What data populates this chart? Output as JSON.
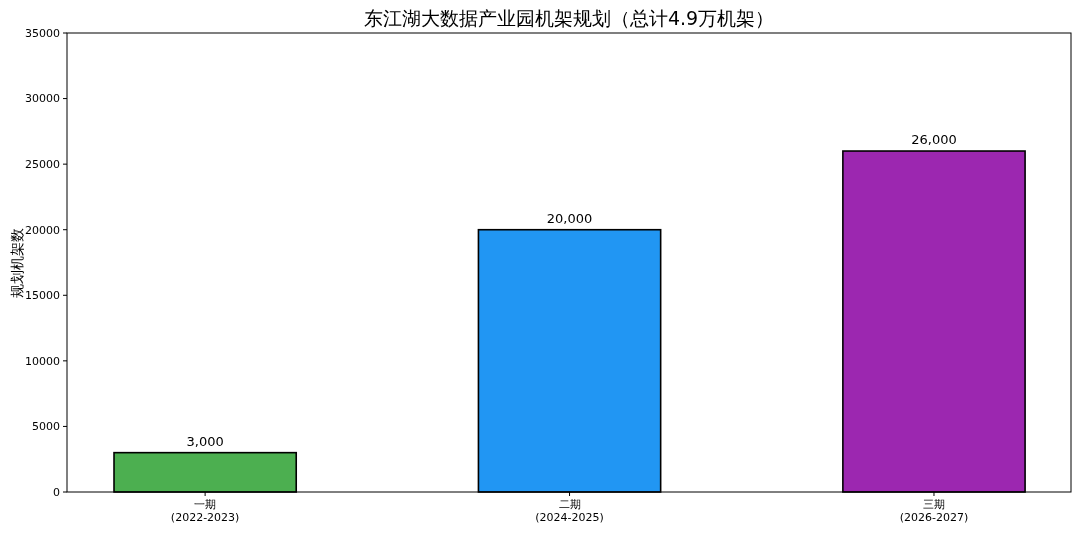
{
  "chart_data": {
    "type": "bar",
    "title": "东江湖大数据产业园机架规划（总计4.9万机架）",
    "ylabel": "规划机架数",
    "categories": [
      "一期\n(2022-2023)",
      "二期\n(2024-2025)",
      "三期\n(2026-2027)"
    ],
    "values": [
      3000,
      20000,
      26000
    ],
    "colors": [
      "#4caf50",
      "#2196f3",
      "#9c27b0"
    ],
    "value_labels": [
      "3,000",
      "20,000",
      "26,000"
    ],
    "ylim": [
      0,
      35000
    ],
    "yticks": [
      0,
      5000,
      10000,
      15000,
      20000,
      25000,
      30000,
      35000
    ],
    "grid": false
  }
}
